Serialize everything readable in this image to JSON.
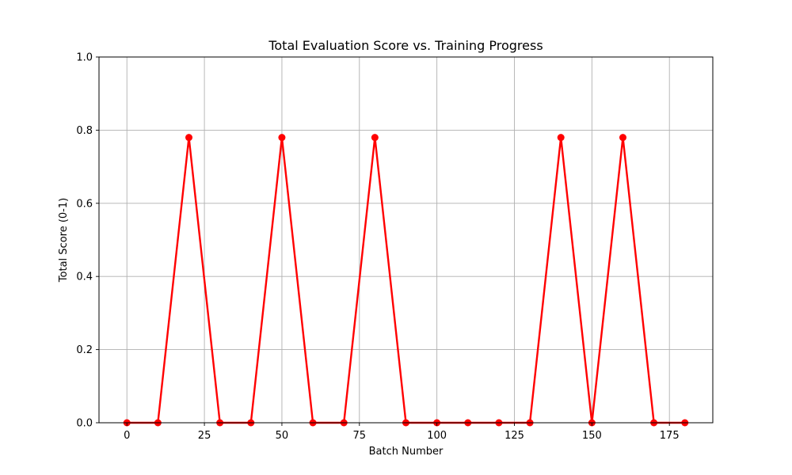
{
  "chart_data": {
    "type": "line",
    "title": "Total Evaluation Score vs. Training Progress",
    "xlabel": "Batch Number",
    "ylabel": "Total Score (0-1)",
    "xlim": [
      -9,
      189
    ],
    "ylim": [
      0,
      1.0
    ],
    "xticks": [
      0,
      25,
      50,
      75,
      100,
      125,
      150,
      175
    ],
    "xtick_labels": [
      "0",
      "25",
      "50",
      "75",
      "100",
      "125",
      "150",
      "175"
    ],
    "yticks": [
      0,
      0.2,
      0.4,
      0.6,
      0.8,
      1.0
    ],
    "ytick_labels": [
      "0.0",
      "0.2",
      "0.4",
      "0.6",
      "0.8",
      "1.0"
    ],
    "grid": true,
    "series": [
      {
        "color": "#ff0000",
        "marker": "circle",
        "x": [
          0,
          10,
          20,
          30,
          40,
          50,
          60,
          70,
          80,
          90,
          100,
          110,
          120,
          130,
          140,
          150,
          160,
          170,
          180
        ],
        "y": [
          0,
          0,
          0.78,
          0,
          0,
          0.78,
          0,
          0,
          0.78,
          0,
          0,
          0,
          0,
          0,
          0.78,
          0,
          0.78,
          0,
          0
        ]
      }
    ]
  }
}
